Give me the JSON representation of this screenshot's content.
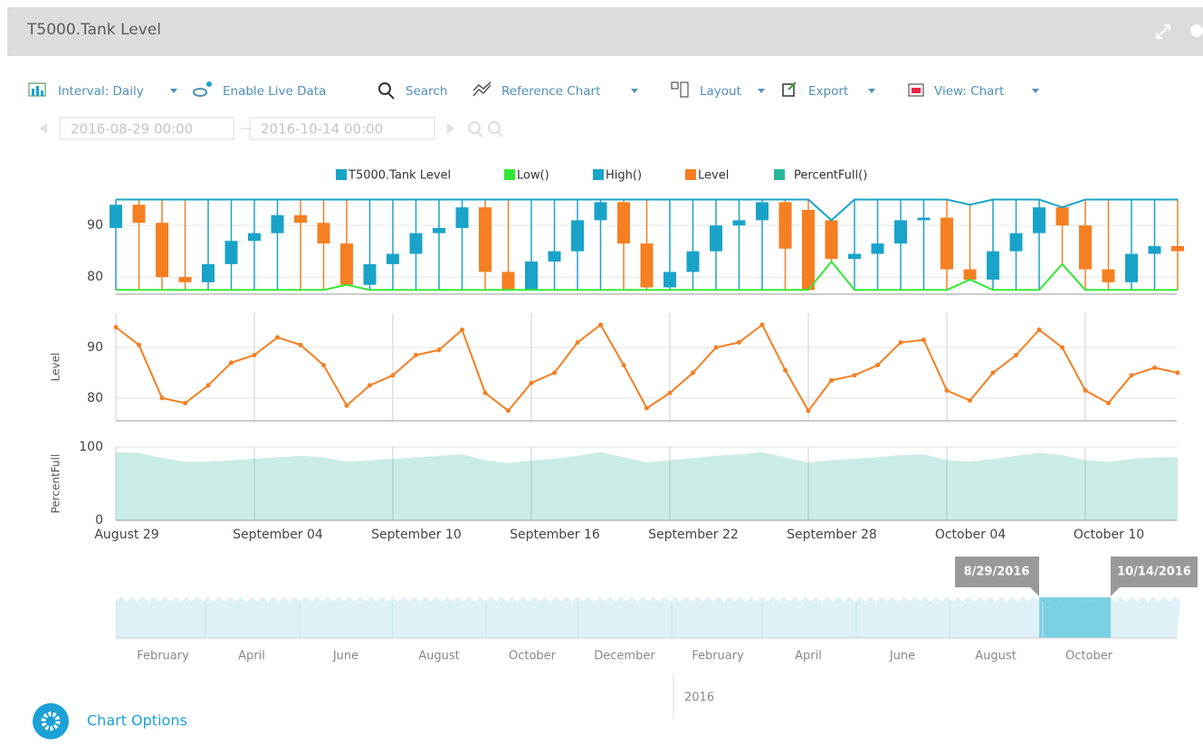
{
  "header": {
    "title": "T5000.Tank Level"
  },
  "toolbar": {
    "interval": "Interval: Daily",
    "live": "Enable Live Data",
    "search": "Search",
    "reference": "Reference Chart",
    "layout": "Layout",
    "export": "Export",
    "view": "View: Chart"
  },
  "date_range": {
    "start": "2016-08-29 00:00",
    "end": "2016-10-14 00:00"
  },
  "chart_data": [
    {
      "type": "candlestick",
      "ylim": [
        76.7,
        96.5
      ],
      "yticks": [
        80,
        90
      ],
      "grid": true,
      "series": [
        {
          "name": "T5000.Tank Level",
          "color": "#1aa3c9",
          "down_color": "#f57f22",
          "open": [
            89.5,
            94,
            90.5,
            80,
            79,
            82.5,
            87,
            88.5,
            92,
            90.5,
            86.5,
            78.5,
            82.5,
            84.5,
            88.5,
            89.5,
            93.5,
            81,
            77.5,
            83,
            85,
            91,
            94.5,
            86.5,
            78,
            81,
            85,
            90,
            91,
            94.5,
            93,
            91,
            83.5,
            84.5,
            86.5,
            91,
            91.5,
            81.5,
            79.5,
            85,
            88.5,
            93.5,
            90,
            81.5,
            79,
            84.5,
            86
          ],
          "close": [
            94,
            90.5,
            80,
            79,
            82.5,
            87,
            88.5,
            92,
            90.5,
            86.5,
            78.5,
            82.5,
            84.5,
            88.5,
            89.5,
            93.5,
            81,
            77.5,
            83,
            85,
            91,
            94.5,
            86.5,
            78,
            81,
            85,
            90,
            91,
            94.5,
            85.5,
            77.5,
            83.5,
            84.5,
            86.5,
            91,
            91.5,
            81.5,
            79.5,
            85,
            88.5,
            93.5,
            90,
            81.5,
            79,
            84.5,
            86,
            85
          ]
        },
        {
          "name": "Low()",
          "color": "#33e633",
          "values": [
            77.5,
            77.5,
            77.5,
            77.5,
            77.5,
            77.5,
            77.5,
            77.5,
            77.5,
            77.5,
            78.5,
            77.5,
            77.5,
            77.5,
            77.5,
            77.5,
            77.5,
            77.5,
            77.5,
            77.5,
            77.5,
            77.5,
            77.5,
            77.5,
            77.5,
            77.5,
            77.5,
            77.5,
            77.5,
            77.5,
            77.5,
            83,
            77.5,
            77.5,
            77.5,
            77.5,
            77.5,
            79.5,
            77.5,
            77.5,
            77.5,
            82.5,
            77.5,
            77.5,
            77.5,
            77.5,
            77.5
          ]
        },
        {
          "name": "High()",
          "color": "#1aa3c9",
          "values": [
            95,
            95,
            95,
            95,
            95,
            95,
            95,
            95,
            95,
            95,
            95,
            95,
            95,
            95,
            95,
            95,
            95,
            95,
            95,
            95,
            95,
            95,
            95,
            95,
            95,
            95,
            95,
            95,
            95,
            95,
            95,
            91,
            95,
            95,
            95,
            95,
            95,
            94,
            95,
            95,
            95,
            93.5,
            95,
            95,
            95,
            95,
            95
          ]
        }
      ]
    },
    {
      "type": "line",
      "ylabel": "Level",
      "ylim": [
        75.5,
        96.8
      ],
      "yticks": [
        80,
        90
      ],
      "grid": true,
      "series": [
        {
          "name": "Level",
          "color": "#f57f22",
          "values": [
            94,
            90.5,
            80,
            79,
            82.5,
            87,
            88.5,
            92,
            90.5,
            86.5,
            78.5,
            82.5,
            84.5,
            88.5,
            89.5,
            93.5,
            81,
            77.5,
            83,
            85,
            91,
            94.5,
            86.5,
            78,
            81,
            85,
            90,
            91,
            94.5,
            85.5,
            77.5,
            83.5,
            84.5,
            86.5,
            91,
            91.5,
            81.5,
            79.5,
            85,
            88.5,
            93.5,
            90,
            81.5,
            79,
            84.5,
            86,
            85
          ]
        }
      ]
    },
    {
      "type": "area",
      "ylabel": "PercentFull",
      "ylim": [
        0,
        100
      ],
      "yticks": [
        0,
        100
      ],
      "grid": true,
      "categories": [
        "August 29",
        null,
        null,
        null,
        null,
        null,
        "September 04",
        null,
        null,
        null,
        null,
        null,
        "September 10",
        null,
        null,
        null,
        null,
        null,
        "September 16",
        null,
        null,
        null,
        null,
        null,
        "September 22",
        null,
        null,
        null,
        null,
        null,
        "September 28",
        null,
        null,
        null,
        null,
        null,
        "October 04",
        null,
        null,
        null,
        null,
        null,
        "October 10",
        null,
        null,
        null,
        null
      ],
      "series": [
        {
          "name": "PercentFull()",
          "color": "#2bb59a",
          "values": [
            93,
            92,
            85,
            80,
            80,
            82,
            84,
            86,
            88,
            86,
            80,
            82,
            84,
            86,
            88,
            90,
            82,
            78,
            82,
            84,
            88,
            93,
            86,
            79,
            82,
            85,
            88,
            90,
            93,
            86,
            79,
            82,
            84,
            86,
            89,
            90,
            82,
            80,
            84,
            88,
            92,
            89,
            82,
            80,
            84,
            86,
            86
          ]
        }
      ]
    }
  ],
  "navigator": {
    "start_label": "8/29/2016",
    "end_label": "10/14/2016",
    "months": [
      "February",
      "April",
      "June",
      "August",
      "October",
      "December",
      "February",
      "April",
      "June",
      "August",
      "October"
    ],
    "year": "2016"
  },
  "chart_options": "Chart Options"
}
